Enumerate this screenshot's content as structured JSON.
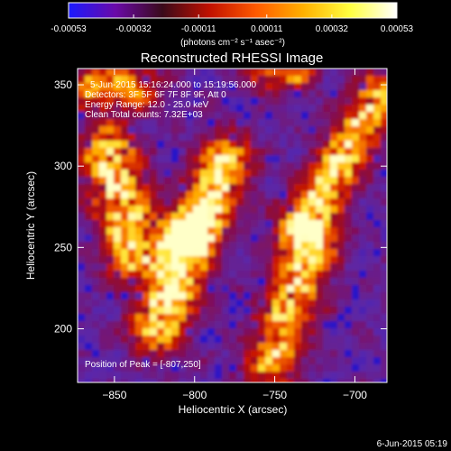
{
  "colorbar": {
    "tick_labels": [
      "-0.00053",
      "-0.00032",
      "-0.00011",
      "0.00011",
      "0.00032",
      "0.00053"
    ],
    "ticks": [
      -0.00053,
      -0.00032,
      -0.00011,
      0.00011,
      0.00032,
      0.00053
    ],
    "range": [
      -0.00053,
      0.00053
    ],
    "units_label": "(photons cm⁻² s⁻¹ asec⁻²)",
    "stops": [
      "#1a1aff",
      "#6a0aa8",
      "#3a0a1a",
      "#c01000",
      "#ff5a00",
      "#ffb000",
      "#ffff40",
      "#ffffff"
    ]
  },
  "chart_data": {
    "type": "heatmap",
    "title": "Reconstructed RHESSI Image",
    "xlabel": "Heliocentric X (arcsec)",
    "ylabel": "Heliocentric Y (arcsec)",
    "xlim": [
      -873,
      -680
    ],
    "ylim": [
      167,
      360
    ],
    "x_ticks": [
      -850,
      -800,
      -750,
      -700
    ],
    "y_ticks": [
      200,
      250,
      300,
      350
    ],
    "x_tick_labels": [
      "−850",
      "−800",
      "−750",
      "−700"
    ],
    "y_tick_labels": [
      "200",
      "250",
      "300",
      "350"
    ],
    "annotations": [
      "5-Jun-2015 15:16:24.000 to 15:19:56.000",
      "Detectors: 3F 5F 6F 7F 8F 9F, Att 0",
      "Energy Range: 12.0 - 25.0 keV",
      "Clean    Total counts: 7.32E+03"
    ],
    "peak_label": "Position of Peak = [-807,250]",
    "peak": [
      -807,
      250
    ]
  },
  "footer": {
    "timestamp": "6-Jun-2015 05:19"
  }
}
